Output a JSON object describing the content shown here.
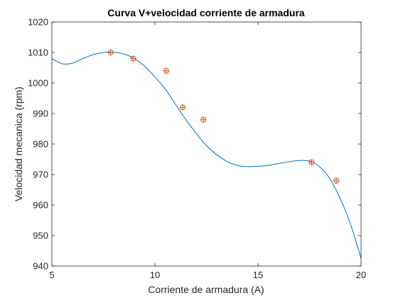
{
  "chart_data": {
    "type": "line",
    "title": "Curva V+velocidad corriente de armadura",
    "xlabel": "Corriente de armadura (A)",
    "ylabel": "Velocidad mecanica (rpm)",
    "xlim": [
      5,
      20
    ],
    "ylim": [
      940,
      1020
    ],
    "xticks": [
      "5",
      "10",
      "15",
      "20"
    ],
    "yticks": [
      "940",
      "950",
      "960",
      "970",
      "980",
      "990",
      "1000",
      "1010",
      "1020"
    ],
    "grid": false,
    "legend": "none",
    "series": [
      {
        "kind": "line",
        "color": "#0072bd",
        "x": [
          5,
          5.5,
          6,
          6.5,
          7,
          7.5,
          8,
          8.5,
          9,
          9.5,
          10,
          10.5,
          11,
          11.5,
          12,
          12.5,
          13,
          13.5,
          14,
          14.5,
          15,
          15.5,
          16,
          16.5,
          17,
          17.5,
          18,
          18.5,
          19,
          19.5,
          20
        ],
        "y": [
          1008,
          1006.3,
          1006.5,
          1008,
          1009.3,
          1010,
          1010.1,
          1009.5,
          1008,
          1005.5,
          1002,
          998,
          993,
          988,
          983.5,
          979.5,
          976.5,
          974.3,
          973,
          972.6,
          972.7,
          973,
          973.6,
          974.2,
          974.6,
          974.4,
          972.5,
          968.5,
          962,
          953.5,
          942.5
        ]
      },
      {
        "kind": "scatter",
        "color": "#d95319",
        "x": [
          7.85,
          8.95,
          10.55,
          11.35,
          12.35,
          17.6,
          18.8
        ],
        "y": [
          1010,
          1008,
          1004,
          992,
          988,
          974,
          968
        ]
      }
    ]
  }
}
